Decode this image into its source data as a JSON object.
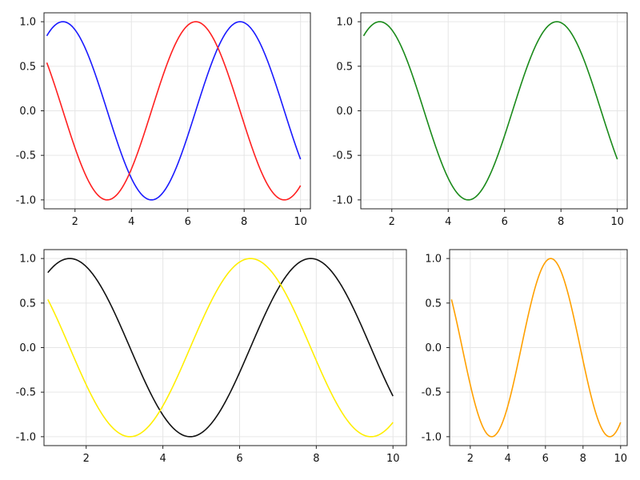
{
  "chart_data": [
    {
      "type": "line",
      "title": "",
      "xlabel": "",
      "ylabel": "",
      "xlim": [
        0.9,
        10.35
      ],
      "ylim": [
        -1.1,
        1.1
      ],
      "xticks": [
        2,
        4,
        6,
        8,
        10
      ],
      "yticks": [
        1.0,
        0.5,
        0.0,
        -0.5,
        -1.0
      ],
      "xtick_labels": [
        "2",
        "4",
        "6",
        "8",
        "10"
      ],
      "ytick_labels": [
        "1.0",
        "0.5",
        "0.0",
        "-0.5",
        "-1.0"
      ],
      "grid": true,
      "legend": "none",
      "x_range": [
        1,
        10
      ],
      "series": [
        {
          "function": "sin(x)",
          "color": "#1a1aff"
        },
        {
          "function": "cos(x)",
          "color": "#ff2020"
        }
      ]
    },
    {
      "type": "line",
      "title": "",
      "xlabel": "",
      "ylabel": "",
      "xlim": [
        0.9,
        10.35
      ],
      "ylim": [
        -1.1,
        1.1
      ],
      "xticks": [
        2,
        4,
        6,
        8,
        10
      ],
      "yticks": [
        1.0,
        0.5,
        0.0,
        -0.5,
        -1.0
      ],
      "xtick_labels": [
        "2",
        "4",
        "6",
        "8",
        "10"
      ],
      "ytick_labels": [
        "1.0",
        "0.5",
        "0.0",
        "-0.5",
        "-1.0"
      ],
      "grid": true,
      "legend": "none",
      "x_range": [
        1,
        10
      ],
      "series": [
        {
          "function": "sin(x)",
          "color": "#1a8a1a"
        }
      ]
    },
    {
      "type": "line",
      "title": "",
      "xlabel": "",
      "ylabel": "",
      "xlim": [
        0.9,
        10.35
      ],
      "ylim": [
        -1.1,
        1.1
      ],
      "xticks": [
        2,
        4,
        6,
        8,
        10
      ],
      "yticks": [
        1.0,
        0.5,
        0.0,
        -0.5,
        -1.0
      ],
      "xtick_labels": [
        "2",
        "4",
        "6",
        "8",
        "10"
      ],
      "ytick_labels": [
        "1.0",
        "0.5",
        "0.0",
        "-0.5",
        "-1.0"
      ],
      "grid": true,
      "legend": "none",
      "x_range": [
        1,
        10
      ],
      "series": [
        {
          "function": "sin(x)",
          "color": "#111111"
        },
        {
          "function": "cos(x)",
          "color": "#ffee00"
        }
      ]
    },
    {
      "type": "line",
      "title": "",
      "xlabel": "",
      "ylabel": "",
      "xlim": [
        0.9,
        10.35
      ],
      "ylim": [
        -1.1,
        1.1
      ],
      "xticks": [
        2,
        4,
        6,
        8,
        10
      ],
      "yticks": [
        1.0,
        0.5,
        0.0,
        -0.5,
        -1.0
      ],
      "xtick_labels": [
        "2",
        "4",
        "6",
        "8",
        "10"
      ],
      "ytick_labels": [
        "1.0",
        "0.5",
        "0.0",
        "-0.5",
        "-1.0"
      ],
      "grid": true,
      "legend": "none",
      "x_range": [
        1,
        10
      ],
      "series": [
        {
          "function": "cos(x)",
          "color": "#ffa000"
        }
      ]
    }
  ]
}
